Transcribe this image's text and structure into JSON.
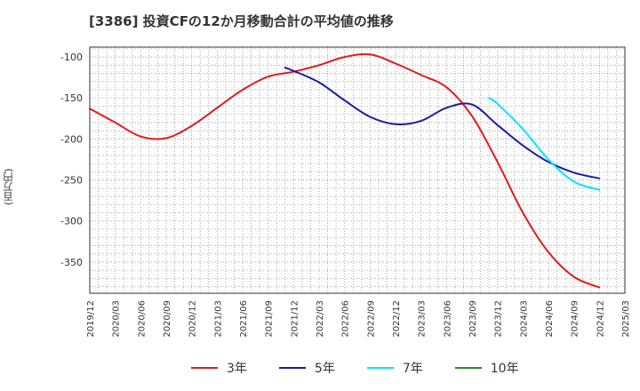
{
  "title": "[3386]  投資CFの12か月移動合計の平均値の推移",
  "unit_label": "(百万円)",
  "chart_data": {
    "type": "line",
    "title": "[3386]  投資CFの12か月移動合計の平均値の推移",
    "ylabel": "(百万円)",
    "xlabel": "",
    "ylim": [
      -388,
      -88
    ],
    "yticks": [
      -100,
      -150,
      -200,
      -250,
      -300,
      -350
    ],
    "xticks": [
      "2019/12",
      "2020/03",
      "2020/06",
      "2020/09",
      "2020/12",
      "2021/03",
      "2021/06",
      "2021/09",
      "2021/12",
      "2022/03",
      "2022/06",
      "2022/09",
      "2022/12",
      "2023/03",
      "2023/06",
      "2023/09",
      "2023/12",
      "2024/03",
      "2024/06",
      "2024/09",
      "2024/12",
      "2025/03"
    ],
    "grid": true,
    "legend_position": "bottom",
    "series": [
      {
        "name": "3年",
        "color": "#e31a1c",
        "x": [
          "2019/12",
          "2020/03",
          "2020/06",
          "2020/09",
          "2020/12",
          "2021/03",
          "2021/06",
          "2021/09",
          "2021/12",
          "2022/03",
          "2022/06",
          "2022/09",
          "2022/12",
          "2023/03",
          "2023/06",
          "2023/09",
          "2023/12",
          "2024/03",
          "2024/06",
          "2024/09",
          "2024/12"
        ],
        "values": [
          -163,
          -180,
          -197,
          -199,
          -184,
          -162,
          -140,
          -124,
          -118,
          -110,
          -100,
          -97,
          -108,
          -122,
          -137,
          -172,
          -228,
          -290,
          -338,
          -368,
          -381
        ]
      },
      {
        "name": "5年",
        "color": "#1a1aa6",
        "x": [
          "2021/11",
          "2021/12",
          "2022/03",
          "2022/06",
          "2022/09",
          "2022/12",
          "2023/03",
          "2023/06",
          "2023/09",
          "2023/12",
          "2024/03",
          "2024/06",
          "2024/09",
          "2024/12"
        ],
        "values": [
          -113,
          -117,
          -131,
          -153,
          -173,
          -182,
          -178,
          -162,
          -158,
          -183,
          -208,
          -228,
          -241,
          -248
        ]
      },
      {
        "name": "7年",
        "color": "#00e5ff",
        "x": [
          "2023/11",
          "2023/12",
          "2024/03",
          "2024/06",
          "2024/09",
          "2024/12"
        ],
        "values": [
          -150,
          -157,
          -188,
          -225,
          -252,
          -262
        ]
      },
      {
        "name": "10年",
        "color": "#228b22",
        "x": [],
        "values": []
      }
    ]
  }
}
